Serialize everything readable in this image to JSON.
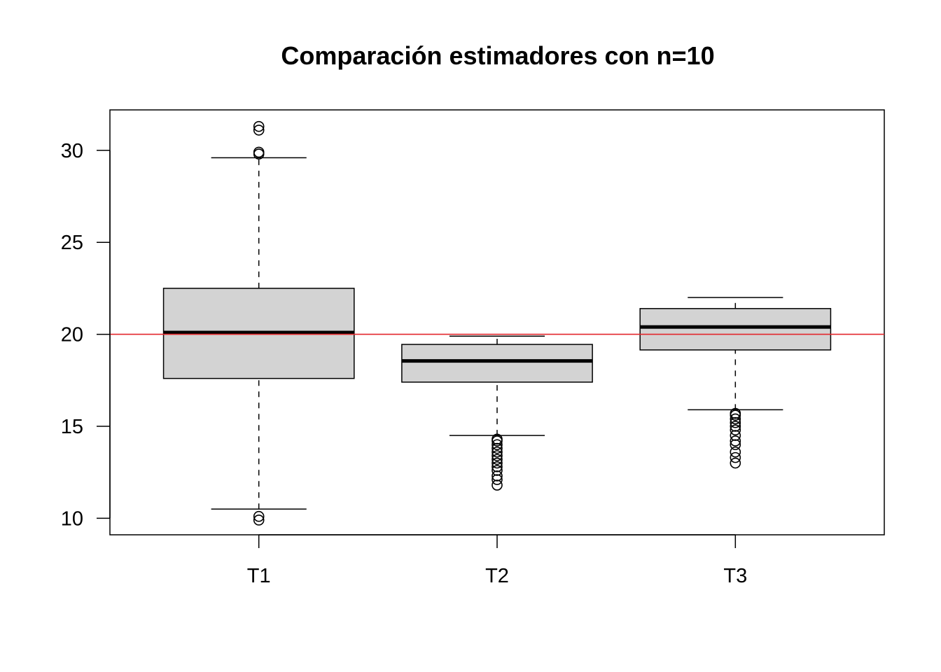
{
  "chart_data": {
    "type": "boxplot",
    "title": "Comparación estimadores con n=10",
    "xlabel": "",
    "ylabel": "",
    "categories": [
      "T1",
      "T2",
      "T3"
    ],
    "y_ticks": [
      10,
      15,
      20,
      25,
      30
    ],
    "ylim": [
      9.1,
      32.2
    ],
    "grid": false,
    "reference_line": {
      "y": 20,
      "color": "#e3262b"
    },
    "box_fill": "#d3d3d3",
    "boxes": [
      {
        "name": "T1",
        "whisker_low": 10.5,
        "q1": 17.6,
        "median": 20.1,
        "q3": 22.5,
        "whisker_high": 29.6,
        "outliers": [
          9.9,
          10.1,
          29.8,
          29.9,
          31.1,
          31.3
        ]
      },
      {
        "name": "T2",
        "whisker_low": 14.5,
        "q1": 17.4,
        "median": 18.55,
        "q3": 19.45,
        "whisker_high": 19.9,
        "outliers": [
          11.8,
          12.1,
          12.3,
          12.6,
          12.8,
          13.0,
          13.2,
          13.4,
          13.6,
          13.8,
          14.0,
          14.2,
          14.3
        ]
      },
      {
        "name": "T3",
        "whisker_low": 15.9,
        "q1": 19.15,
        "median": 20.4,
        "q3": 21.4,
        "whisker_high": 22.0,
        "outliers": [
          13.0,
          13.3,
          13.6,
          14.0,
          14.2,
          14.5,
          14.8,
          15.0,
          15.2,
          15.4,
          15.6,
          15.7
        ]
      }
    ]
  }
}
